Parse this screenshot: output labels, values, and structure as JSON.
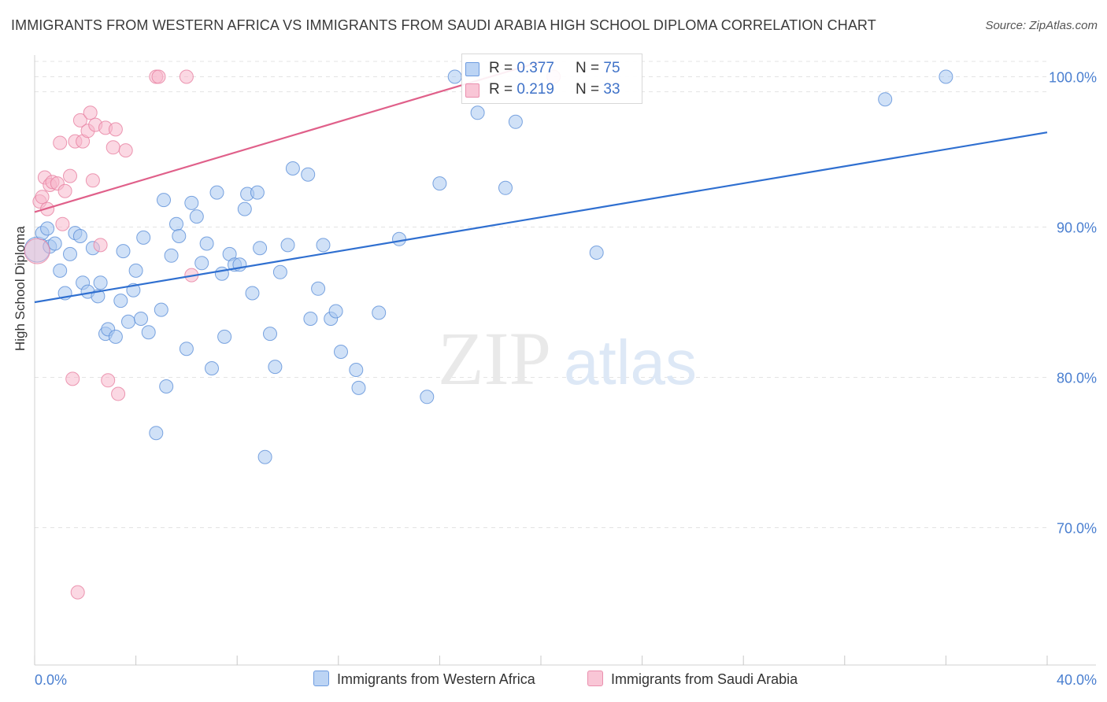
{
  "title": "IMMIGRANTS FROM WESTERN AFRICA VS IMMIGRANTS FROM SAUDI ARABIA HIGH SCHOOL DIPLOMA CORRELATION CHART",
  "source": "Source: ZipAtlas.com",
  "watermark": {
    "zip": "ZIP",
    "atlas": "atlas"
  },
  "legend": {
    "series1": {
      "r_label": "R = ",
      "r_value": "0.377",
      "n_label": "N = ",
      "n_value": "75"
    },
    "series2": {
      "r_label": "R = ",
      "r_value": "0.219",
      "n_label": "N = ",
      "n_value": "33"
    }
  },
  "chart_data": {
    "type": "scatter",
    "title": "IMMIGRANTS FROM WESTERN AFRICA VS IMMIGRANTS FROM SAUDI ARABIA HIGH SCHOOL DIPLOMA CORRELATION CHART",
    "xlabel": "",
    "ylabel": "High School Diploma",
    "xlim": [
      0,
      40
    ],
    "ylim": [
      60,
      101
    ],
    "x_tick_labels": [
      {
        "value": 0,
        "label": "0.0%"
      },
      {
        "value": 40,
        "label": "40.0%"
      }
    ],
    "y_tick_labels": [
      {
        "value": 100,
        "label": "100.0%"
      },
      {
        "value": 90,
        "label": "90.0%"
      },
      {
        "value": 80,
        "label": "80.0%"
      },
      {
        "value": 70,
        "label": "70.0%"
      }
    ],
    "grid": true,
    "legend_position": "top-center",
    "colors": {
      "series1": "#a9c8f0",
      "series1_edge": "#5b8fd8",
      "series1_line": "#2f6fd0",
      "series2": "#f7b8cc",
      "series2_edge": "#e77fa0",
      "series2_line": "#e0608a",
      "axis_label": "#4a7fd0"
    },
    "series": [
      {
        "name": "Immigrants from Western Africa",
        "trend": {
          "x": [
            0,
            40
          ],
          "y": [
            85.0,
            96.3
          ]
        },
        "points": [
          {
            "x": 0.1,
            "y": 88.5,
            "big": true
          },
          {
            "x": 0.3,
            "y": 89.6
          },
          {
            "x": 0.5,
            "y": 89.9
          },
          {
            "x": 0.6,
            "y": 88.7
          },
          {
            "x": 0.8,
            "y": 88.9
          },
          {
            "x": 1.0,
            "y": 87.1
          },
          {
            "x": 1.2,
            "y": 85.6
          },
          {
            "x": 1.4,
            "y": 88.2
          },
          {
            "x": 1.6,
            "y": 89.6
          },
          {
            "x": 1.8,
            "y": 89.4
          },
          {
            "x": 1.9,
            "y": 86.3
          },
          {
            "x": 2.1,
            "y": 85.7
          },
          {
            "x": 2.3,
            "y": 88.6
          },
          {
            "x": 2.5,
            "y": 85.4
          },
          {
            "x": 2.6,
            "y": 86.3
          },
          {
            "x": 2.8,
            "y": 82.9
          },
          {
            "x": 2.9,
            "y": 83.2
          },
          {
            "x": 3.2,
            "y": 82.7
          },
          {
            "x": 3.4,
            "y": 85.1
          },
          {
            "x": 3.5,
            "y": 88.4
          },
          {
            "x": 3.7,
            "y": 83.7
          },
          {
            "x": 3.9,
            "y": 85.8
          },
          {
            "x": 4.0,
            "y": 87.1
          },
          {
            "x": 4.2,
            "y": 83.9
          },
          {
            "x": 4.3,
            "y": 89.3
          },
          {
            "x": 4.5,
            "y": 83.0
          },
          {
            "x": 4.8,
            "y": 76.3
          },
          {
            "x": 5.0,
            "y": 84.5
          },
          {
            "x": 5.1,
            "y": 91.8
          },
          {
            "x": 5.2,
            "y": 79.4
          },
          {
            "x": 5.4,
            "y": 88.1
          },
          {
            "x": 5.6,
            "y": 90.2
          },
          {
            "x": 5.7,
            "y": 89.4
          },
          {
            "x": 6.0,
            "y": 81.9
          },
          {
            "x": 6.2,
            "y": 91.6
          },
          {
            "x": 6.4,
            "y": 90.7
          },
          {
            "x": 6.6,
            "y": 87.6
          },
          {
            "x": 6.8,
            "y": 88.9
          },
          {
            "x": 7.0,
            "y": 80.6
          },
          {
            "x": 7.2,
            "y": 92.3
          },
          {
            "x": 7.4,
            "y": 86.9
          },
          {
            "x": 7.5,
            "y": 82.7
          },
          {
            "x": 7.7,
            "y": 88.2
          },
          {
            "x": 7.9,
            "y": 87.5
          },
          {
            "x": 8.1,
            "y": 87.5
          },
          {
            "x": 8.3,
            "y": 91.2
          },
          {
            "x": 8.4,
            "y": 92.2
          },
          {
            "x": 8.6,
            "y": 85.6
          },
          {
            "x": 8.8,
            "y": 92.3
          },
          {
            "x": 8.9,
            "y": 88.6
          },
          {
            "x": 9.1,
            "y": 74.7
          },
          {
            "x": 9.3,
            "y": 82.9
          },
          {
            "x": 9.5,
            "y": 80.7
          },
          {
            "x": 9.7,
            "y": 87.0
          },
          {
            "x": 10.0,
            "y": 88.8
          },
          {
            "x": 10.2,
            "y": 93.9
          },
          {
            "x": 10.8,
            "y": 93.5
          },
          {
            "x": 10.9,
            "y": 83.9
          },
          {
            "x": 11.2,
            "y": 85.9
          },
          {
            "x": 11.4,
            "y": 88.8
          },
          {
            "x": 11.7,
            "y": 83.9
          },
          {
            "x": 11.9,
            "y": 84.4
          },
          {
            "x": 12.1,
            "y": 81.7
          },
          {
            "x": 12.7,
            "y": 80.5
          },
          {
            "x": 12.8,
            "y": 79.3
          },
          {
            "x": 13.6,
            "y": 84.3
          },
          {
            "x": 14.4,
            "y": 89.2
          },
          {
            "x": 15.5,
            "y": 78.7
          },
          {
            "x": 16.0,
            "y": 92.9
          },
          {
            "x": 16.6,
            "y": 100.0
          },
          {
            "x": 18.6,
            "y": 92.6
          },
          {
            "x": 22.2,
            "y": 88.3
          },
          {
            "x": 33.6,
            "y": 98.5
          },
          {
            "x": 36.0,
            "y": 100.0
          },
          {
            "x": 17.5,
            "y": 97.6
          },
          {
            "x": 19.0,
            "y": 97.0
          }
        ]
      },
      {
        "name": "Immigrants from Saudi Arabia",
        "trend": {
          "x": [
            0,
            20
          ],
          "y": [
            91.0,
            101.0
          ]
        },
        "points": [
          {
            "x": 0.1,
            "y": 88.4,
            "big": true
          },
          {
            "x": 0.2,
            "y": 91.7
          },
          {
            "x": 0.3,
            "y": 92.0
          },
          {
            "x": 0.4,
            "y": 93.3
          },
          {
            "x": 0.5,
            "y": 91.2
          },
          {
            "x": 0.6,
            "y": 92.8
          },
          {
            "x": 0.7,
            "y": 93.0
          },
          {
            "x": 0.9,
            "y": 92.9
          },
          {
            "x": 1.0,
            "y": 95.6
          },
          {
            "x": 1.1,
            "y": 90.2
          },
          {
            "x": 1.2,
            "y": 92.4
          },
          {
            "x": 1.4,
            "y": 93.4
          },
          {
            "x": 1.5,
            "y": 79.9
          },
          {
            "x": 1.6,
            "y": 95.7
          },
          {
            "x": 1.7,
            "y": 65.7
          },
          {
            "x": 1.8,
            "y": 97.1
          },
          {
            "x": 1.9,
            "y": 95.7
          },
          {
            "x": 2.1,
            "y": 96.4
          },
          {
            "x": 2.2,
            "y": 97.6
          },
          {
            "x": 2.3,
            "y": 93.1
          },
          {
            "x": 2.4,
            "y": 96.8
          },
          {
            "x": 2.6,
            "y": 88.8
          },
          {
            "x": 2.8,
            "y": 96.6
          },
          {
            "x": 2.9,
            "y": 79.8
          },
          {
            "x": 3.1,
            "y": 95.3
          },
          {
            "x": 3.2,
            "y": 96.5
          },
          {
            "x": 3.3,
            "y": 78.9
          },
          {
            "x": 3.6,
            "y": 95.1
          },
          {
            "x": 4.8,
            "y": 100.0
          },
          {
            "x": 4.9,
            "y": 100.0
          },
          {
            "x": 6.2,
            "y": 86.8
          },
          {
            "x": 6.0,
            "y": 100.0
          },
          {
            "x": 20.5,
            "y": 100.0
          }
        ]
      }
    ]
  },
  "bottom_legend": {
    "series1_label": "Immigrants from Western Africa",
    "series2_label": "Immigrants from Saudi Arabia"
  }
}
